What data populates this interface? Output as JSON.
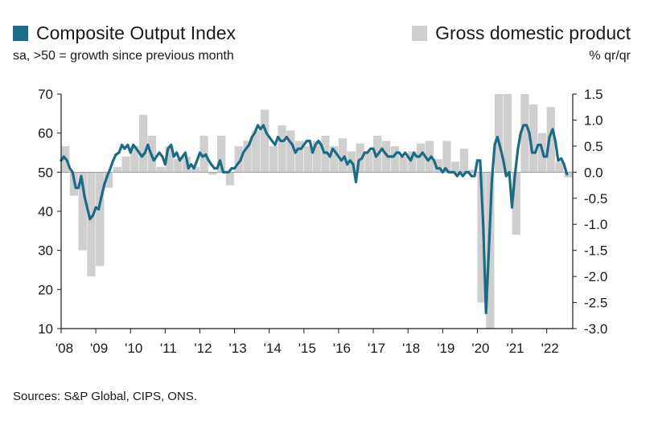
{
  "legend": {
    "left_label": "Composite Output Index",
    "left_note": "sa, >50 = growth since previous month",
    "right_label": "Gross domestic product",
    "right_note": "% qr/qr",
    "line_color": "#1b6b86",
    "bar_color": "#cfcfcf"
  },
  "source": "Sources: S&P Global, CIPS, ONS.",
  "chart_data": {
    "type": "line",
    "y_left": {
      "range": [
        10,
        70
      ],
      "ticks": [
        "10",
        "20",
        "30",
        "40",
        "50",
        "60",
        "70"
      ]
    },
    "y_right": {
      "range": [
        -3.0,
        1.5
      ],
      "ticks": [
        "-3.0",
        "-2.5",
        "-2.0",
        "-1.5",
        "-1.0",
        "-0.5",
        "0.0",
        "0.5",
        "1.0",
        "1.5"
      ]
    },
    "x_range": [
      2008,
      2022.75
    ],
    "x_ticks": [
      {
        "x": 2008,
        "label": "'08"
      },
      {
        "x": 2009,
        "label": "'09"
      },
      {
        "x": 2010,
        "label": "'10"
      },
      {
        "x": 2011,
        "label": "'11"
      },
      {
        "x": 2012,
        "label": "'12"
      },
      {
        "x": 2013,
        "label": "'13"
      },
      {
        "x": 2014,
        "label": "'14"
      },
      {
        "x": 2015,
        "label": "'15"
      },
      {
        "x": 2016,
        "label": "'16"
      },
      {
        "x": 2017,
        "label": "'17"
      },
      {
        "x": 2018,
        "label": "'18"
      },
      {
        "x": 2019,
        "label": "'19"
      },
      {
        "x": 2020,
        "label": "'20"
      },
      {
        "x": 2021,
        "label": "'21"
      },
      {
        "x": 2022,
        "label": "'22"
      }
    ],
    "series": [
      {
        "name": "Composite Output Index",
        "axis": "left",
        "points": [
          [
            2008.0,
            53
          ],
          [
            2008.08,
            54
          ],
          [
            2008.17,
            53
          ],
          [
            2008.25,
            51
          ],
          [
            2008.33,
            50
          ],
          [
            2008.42,
            46
          ],
          [
            2008.5,
            46
          ],
          [
            2008.58,
            49
          ],
          [
            2008.67,
            44
          ],
          [
            2008.75,
            41
          ],
          [
            2008.83,
            38
          ],
          [
            2008.92,
            39
          ],
          [
            2009.0,
            41
          ],
          [
            2009.08,
            40.5
          ],
          [
            2009.17,
            44
          ],
          [
            2009.25,
            47
          ],
          [
            2009.33,
            49
          ],
          [
            2009.42,
            51
          ],
          [
            2009.5,
            53
          ],
          [
            2009.58,
            54.5
          ],
          [
            2009.67,
            55
          ],
          [
            2009.75,
            57
          ],
          [
            2009.83,
            56
          ],
          [
            2009.92,
            57
          ],
          [
            2010.0,
            55
          ],
          [
            2010.08,
            57
          ],
          [
            2010.17,
            56
          ],
          [
            2010.25,
            55
          ],
          [
            2010.33,
            54
          ],
          [
            2010.42,
            55
          ],
          [
            2010.5,
            57
          ],
          [
            2010.58,
            55
          ],
          [
            2010.67,
            53
          ],
          [
            2010.75,
            54
          ],
          [
            2010.83,
            55
          ],
          [
            2010.92,
            54
          ],
          [
            2011.0,
            52
          ],
          [
            2011.08,
            56
          ],
          [
            2011.17,
            57
          ],
          [
            2011.25,
            54
          ],
          [
            2011.33,
            55
          ],
          [
            2011.42,
            53
          ],
          [
            2011.5,
            54
          ],
          [
            2011.58,
            55
          ],
          [
            2011.67,
            51
          ],
          [
            2011.75,
            52
          ],
          [
            2011.83,
            51
          ],
          [
            2011.92,
            53
          ],
          [
            2012.0,
            55
          ],
          [
            2012.08,
            54
          ],
          [
            2012.17,
            54.5
          ],
          [
            2012.25,
            53
          ],
          [
            2012.33,
            52
          ],
          [
            2012.42,
            51
          ],
          [
            2012.5,
            51
          ],
          [
            2012.58,
            53
          ],
          [
            2012.67,
            50
          ],
          [
            2012.75,
            50
          ],
          [
            2012.83,
            50
          ],
          [
            2012.92,
            51
          ],
          [
            2013.0,
            51
          ],
          [
            2013.08,
            52
          ],
          [
            2013.17,
            53
          ],
          [
            2013.25,
            55
          ],
          [
            2013.33,
            56
          ],
          [
            2013.42,
            57
          ],
          [
            2013.5,
            59
          ],
          [
            2013.58,
            60
          ],
          [
            2013.67,
            62
          ],
          [
            2013.75,
            61
          ],
          [
            2013.83,
            62
          ],
          [
            2013.92,
            60
          ],
          [
            2014.0,
            59
          ],
          [
            2014.08,
            58
          ],
          [
            2014.17,
            57
          ],
          [
            2014.25,
            59
          ],
          [
            2014.33,
            58
          ],
          [
            2014.42,
            58
          ],
          [
            2014.5,
            59
          ],
          [
            2014.58,
            58
          ],
          [
            2014.67,
            57
          ],
          [
            2014.75,
            55
          ],
          [
            2014.83,
            56
          ],
          [
            2014.92,
            56
          ],
          [
            2015.0,
            57
          ],
          [
            2015.08,
            58
          ],
          [
            2015.17,
            58
          ],
          [
            2015.25,
            55
          ],
          [
            2015.33,
            57
          ],
          [
            2015.42,
            58
          ],
          [
            2015.5,
            57
          ],
          [
            2015.58,
            55
          ],
          [
            2015.67,
            55
          ],
          [
            2015.75,
            54
          ],
          [
            2015.83,
            56
          ],
          [
            2015.92,
            55
          ],
          [
            2016.0,
            54
          ],
          [
            2016.08,
            53
          ],
          [
            2016.17,
            54
          ],
          [
            2016.25,
            52
          ],
          [
            2016.33,
            53
          ],
          [
            2016.42,
            52
          ],
          [
            2016.5,
            47.5
          ],
          [
            2016.58,
            53
          ],
          [
            2016.67,
            53.5
          ],
          [
            2016.75,
            55
          ],
          [
            2016.83,
            55
          ],
          [
            2016.92,
            56
          ],
          [
            2017.0,
            56
          ],
          [
            2017.08,
            54
          ],
          [
            2017.17,
            55
          ],
          [
            2017.25,
            56
          ],
          [
            2017.33,
            55
          ],
          [
            2017.42,
            54
          ],
          [
            2017.5,
            54
          ],
          [
            2017.58,
            54
          ],
          [
            2017.67,
            55
          ],
          [
            2017.75,
            55
          ],
          [
            2017.83,
            54
          ],
          [
            2017.92,
            55
          ],
          [
            2018.0,
            54
          ],
          [
            2018.08,
            53
          ],
          [
            2018.17,
            55
          ],
          [
            2018.25,
            54
          ],
          [
            2018.33,
            54
          ],
          [
            2018.42,
            55
          ],
          [
            2018.5,
            54
          ],
          [
            2018.58,
            53
          ],
          [
            2018.67,
            54
          ],
          [
            2018.75,
            53
          ],
          [
            2018.83,
            51
          ],
          [
            2018.92,
            51
          ],
          [
            2019.0,
            50
          ],
          [
            2019.08,
            51
          ],
          [
            2019.17,
            50
          ],
          [
            2019.25,
            50
          ],
          [
            2019.33,
            50
          ],
          [
            2019.42,
            49
          ],
          [
            2019.5,
            50
          ],
          [
            2019.58,
            49
          ],
          [
            2019.67,
            50
          ],
          [
            2019.75,
            50
          ],
          [
            2019.83,
            49
          ],
          [
            2019.92,
            49
          ],
          [
            2020.0,
            53
          ],
          [
            2020.08,
            53
          ],
          [
            2020.17,
            36
          ],
          [
            2020.25,
            14
          ],
          [
            2020.33,
            30
          ],
          [
            2020.42,
            48
          ],
          [
            2020.5,
            57
          ],
          [
            2020.58,
            59
          ],
          [
            2020.67,
            56
          ],
          [
            2020.75,
            53
          ],
          [
            2020.83,
            49
          ],
          [
            2020.92,
            50
          ],
          [
            2021.0,
            41
          ],
          [
            2021.08,
            49
          ],
          [
            2021.17,
            56
          ],
          [
            2021.25,
            60
          ],
          [
            2021.33,
            62
          ],
          [
            2021.42,
            62
          ],
          [
            2021.5,
            60
          ],
          [
            2021.58,
            55
          ],
          [
            2021.67,
            55
          ],
          [
            2021.75,
            57
          ],
          [
            2021.83,
            57
          ],
          [
            2021.92,
            54
          ],
          [
            2022.0,
            54
          ],
          [
            2022.08,
            59
          ],
          [
            2022.17,
            61
          ],
          [
            2022.25,
            58
          ],
          [
            2022.33,
            53
          ],
          [
            2022.42,
            53.5
          ],
          [
            2022.5,
            52
          ],
          [
            2022.58,
            49.5
          ]
        ]
      },
      {
        "name": "Gross domestic product",
        "axis": "right",
        "points": [
          [
            2008.0,
            0.5
          ],
          [
            2008.25,
            -0.45
          ],
          [
            2008.5,
            -1.5
          ],
          [
            2008.75,
            -2.0
          ],
          [
            2009.0,
            -1.8
          ],
          [
            2009.25,
            -0.3
          ],
          [
            2009.5,
            0.1
          ],
          [
            2009.75,
            0.3
          ],
          [
            2010.0,
            0.5
          ],
          [
            2010.25,
            1.1
          ],
          [
            2010.5,
            0.7
          ],
          [
            2010.75,
            0.1
          ],
          [
            2011.0,
            0.5
          ],
          [
            2011.25,
            0.25
          ],
          [
            2011.5,
            0.3
          ],
          [
            2011.75,
            0.1
          ],
          [
            2012.0,
            0.7
          ],
          [
            2012.25,
            -0.05
          ],
          [
            2012.5,
            0.7
          ],
          [
            2012.75,
            -0.25
          ],
          [
            2013.0,
            0.5
          ],
          [
            2013.25,
            0.6
          ],
          [
            2013.5,
            0.8
          ],
          [
            2013.75,
            1.2
          ],
          [
            2014.0,
            0.5
          ],
          [
            2014.25,
            0.9
          ],
          [
            2014.5,
            0.8
          ],
          [
            2014.75,
            0.6
          ],
          [
            2015.0,
            0.5
          ],
          [
            2015.25,
            0.6
          ],
          [
            2015.5,
            0.7
          ],
          [
            2015.75,
            0.5
          ],
          [
            2016.0,
            0.65
          ],
          [
            2016.25,
            0.4
          ],
          [
            2016.5,
            0.55
          ],
          [
            2016.75,
            0.4
          ],
          [
            2017.0,
            0.7
          ],
          [
            2017.25,
            0.6
          ],
          [
            2017.5,
            0.5
          ],
          [
            2017.75,
            0.3
          ],
          [
            2018.0,
            0.4
          ],
          [
            2018.25,
            0.55
          ],
          [
            2018.5,
            0.6
          ],
          [
            2018.75,
            0.25
          ],
          [
            2019.0,
            0.6
          ],
          [
            2019.25,
            0.2
          ],
          [
            2019.5,
            0.45
          ],
          [
            2019.75,
            0.05
          ],
          [
            2020.0,
            -2.5
          ],
          [
            2020.25,
            -3.0
          ],
          [
            2020.5,
            1.5
          ],
          [
            2020.75,
            1.5
          ],
          [
            2021.0,
            -1.2
          ],
          [
            2021.25,
            1.5
          ],
          [
            2021.5,
            1.3
          ],
          [
            2021.75,
            0.75
          ],
          [
            2022.0,
            1.25
          ],
          [
            2022.25,
            0.2
          ],
          [
            2022.5,
            -0.1
          ]
        ]
      }
    ]
  }
}
